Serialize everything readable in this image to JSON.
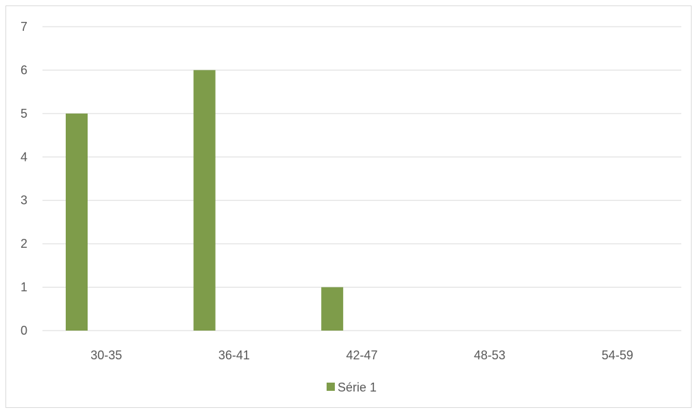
{
  "chart_data": {
    "type": "bar",
    "categories": [
      "30-35",
      "36-41",
      "42-47",
      "48-53",
      "54-59"
    ],
    "series": [
      {
        "name": "Série 1",
        "values": [
          5,
          6,
          1,
          0,
          0
        ]
      }
    ],
    "yticks": [
      "0",
      "1",
      "2",
      "3",
      "4",
      "5",
      "6",
      "7"
    ],
    "ylim": [
      0,
      7
    ],
    "grid": true,
    "legend_position": "bottom",
    "colors": {
      "bar": "#7e9c4a",
      "grid": "#d9d9d9",
      "text": "#595959",
      "border": "#d9d9d9"
    }
  }
}
